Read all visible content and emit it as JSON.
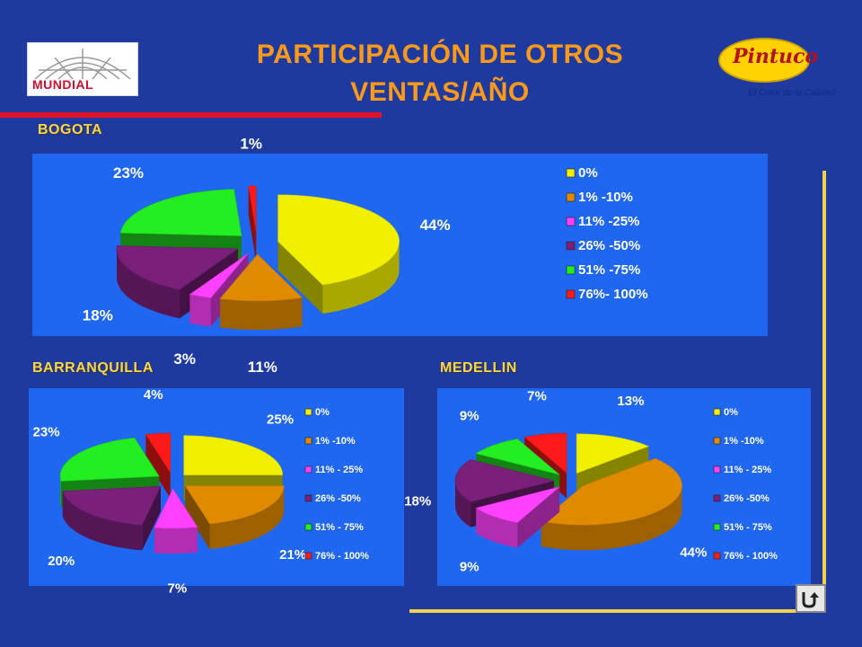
{
  "slide": {
    "title_line1": "PARTICIPACIÓN DE OTROS",
    "title_line2": "VENTAS/AÑO",
    "logo_left_text": "MUNDIAL",
    "logo_right_brand": "Pintuco",
    "logo_right_tagline": "El Color de la Calidad"
  },
  "colors": {
    "background": "#1f3a9f",
    "panel": "#1f66f0",
    "label": "#ffd54a",
    "title": "#ff9a1a",
    "slices": [
      "#f0f000",
      "#e08a00",
      "#ff40ff",
      "#7a1f7a",
      "#22ee22",
      "#ff1a1a"
    ]
  },
  "chart_data": [
    {
      "type": "pie",
      "title": "BOGOTA",
      "categories": [
        "0%",
        "1% -10%",
        "11% -25%",
        "26% -50%",
        "51% -75%",
        "76%- 100%"
      ],
      "values": [
        44,
        11,
        3,
        18,
        23,
        1
      ],
      "labels": [
        "44%",
        "11%",
        "3%",
        "18%",
        "23%",
        "1%"
      ],
      "legend": "right"
    },
    {
      "type": "pie",
      "title": "BARRANQUILLA",
      "categories": [
        "0%",
        "1%  -10%",
        "11%  - 25%",
        "26%  -50%",
        "51%  - 75%",
        "76%  - 100%"
      ],
      "values": [
        25,
        21,
        7,
        20,
        23,
        4
      ],
      "labels": [
        "25%",
        "21%",
        "7%",
        "20%",
        "23%",
        "4%"
      ],
      "legend": "right"
    },
    {
      "type": "pie",
      "title": "MEDELLIN",
      "categories": [
        "0%",
        "1%  -10%",
        "11%  - 25%",
        "26%  -50%",
        "51%  - 75%",
        "76%  - 100%"
      ],
      "values": [
        13,
        44,
        9,
        18,
        9,
        7
      ],
      "labels": [
        "13%",
        "44%",
        "9%",
        "18%",
        "9%",
        "7%"
      ],
      "legend": "right"
    }
  ]
}
